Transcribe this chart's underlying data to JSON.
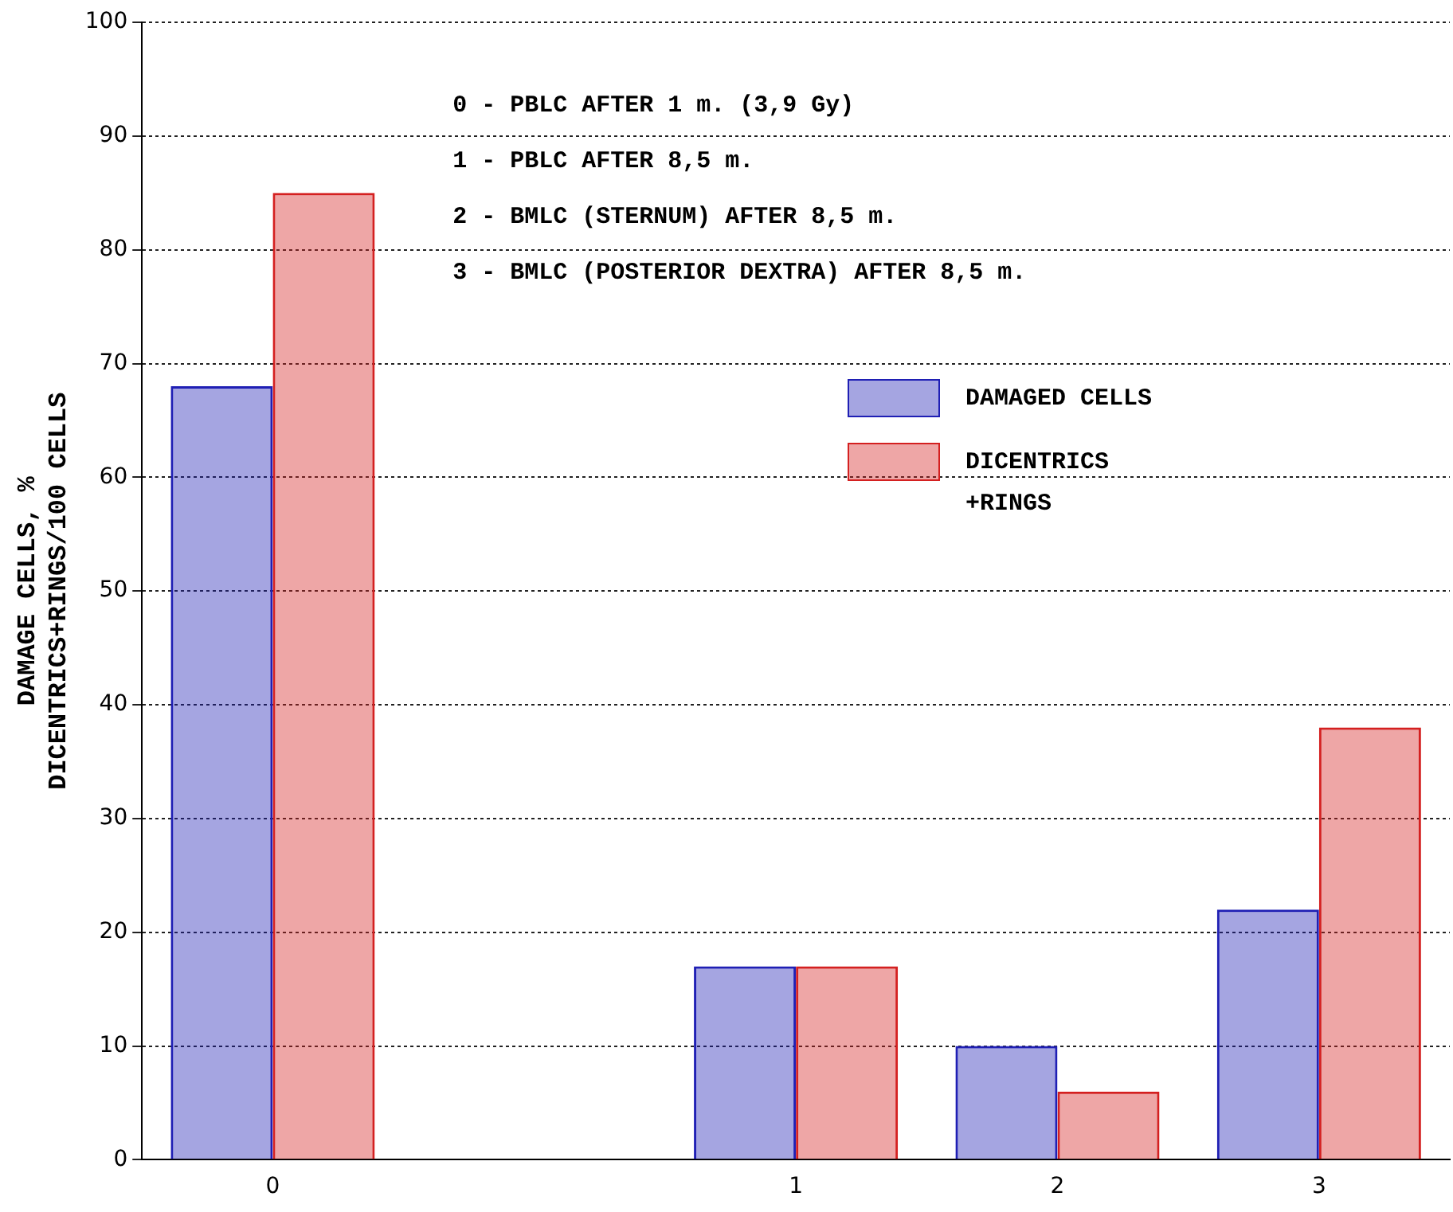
{
  "chart_data": {
    "type": "bar",
    "ylabel": "DAMAGE CELLS, %\nDICENTRICS+RINGS/100 CELLS",
    "categories": [
      "0",
      null,
      "1",
      "2",
      "3"
    ],
    "series": [
      {
        "name": "DAMAGED CELLS",
        "color": "#1f1fb4",
        "values": [
          68,
          null,
          17,
          10,
          22
        ]
      },
      {
        "name": "DICENTRICS +RINGS",
        "color": "#d42020",
        "values": [
          85,
          null,
          17,
          6,
          38
        ]
      }
    ],
    "ylim": [
      0,
      100
    ],
    "yticks": [
      0,
      10,
      20,
      30,
      40,
      50,
      60,
      70,
      80,
      90,
      100
    ],
    "grid": "y",
    "legend": "top right",
    "annotations": [
      "0 - PBLC AFTER 1 m. (3,9 Gy)",
      "1 - PBLC AFTER 8,5 m.",
      "2 - BMLC (STERNUM) AFTER 8,5 m.",
      "3 - BMLC (POSTERIOR DEXTRA) AFTER 8,5 m."
    ]
  }
}
